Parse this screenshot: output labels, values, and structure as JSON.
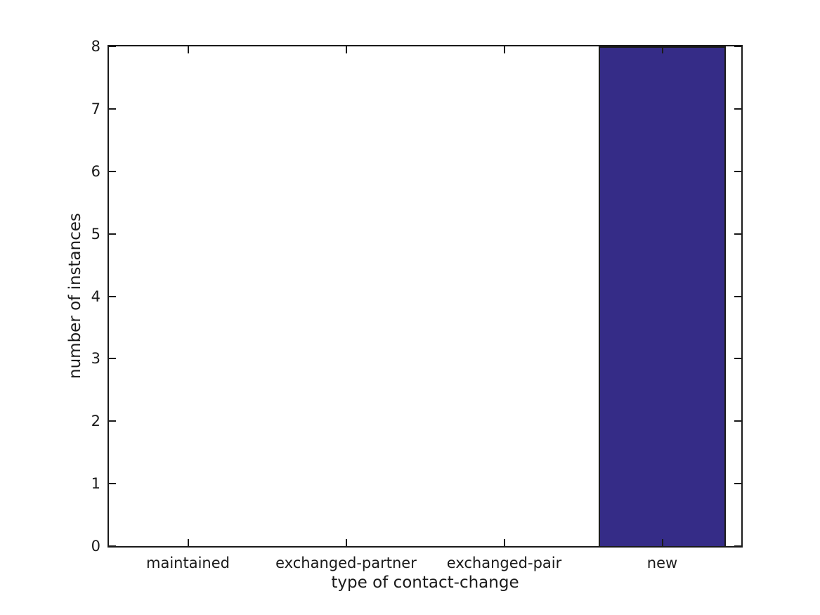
{
  "chart_data": {
    "type": "bar",
    "title": "",
    "xlabel": "type of contact-change",
    "ylabel": "number of instances",
    "categories": [
      "maintained",
      "exchanged-partner",
      "exchanged-pair",
      "new"
    ],
    "values": [
      0,
      0,
      0,
      8
    ],
    "ylim": [
      0,
      8
    ],
    "yticks": [
      0,
      1,
      2,
      3,
      4,
      5,
      6,
      7,
      8
    ],
    "grid": "off",
    "legend": "none",
    "bar_color": "#352c87",
    "bar_edge_color": "#1a1a1a",
    "axis_color": "#1a1a1a",
    "text_color": "#1a1a1a",
    "background_color": "#ffffff"
  }
}
